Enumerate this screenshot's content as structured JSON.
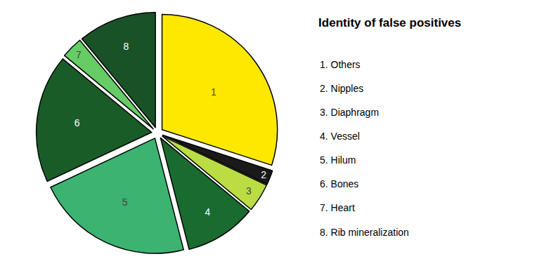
{
  "chart_data": {
    "type": "pie",
    "title": "Identity of false positives",
    "categories": [
      "1",
      "2",
      "3",
      "4",
      "5",
      "6",
      "7",
      "8"
    ],
    "values": [
      30,
      2,
      4,
      10,
      22,
      18,
      3,
      11
    ],
    "colors": [
      "#FFE800",
      "#1A1A1A",
      "#BBDD44",
      "#1A6B30",
      "#3CB371",
      "#1A5C28",
      "#66CC66",
      "#1A5228"
    ],
    "annotations": [
      "1. Others",
      "2. Nipples",
      "3. Diaphragm",
      "4. Vessel",
      "5. Hilum",
      "6. Bones",
      "7. Heart",
      "8. Rib mineralization"
    ]
  }
}
